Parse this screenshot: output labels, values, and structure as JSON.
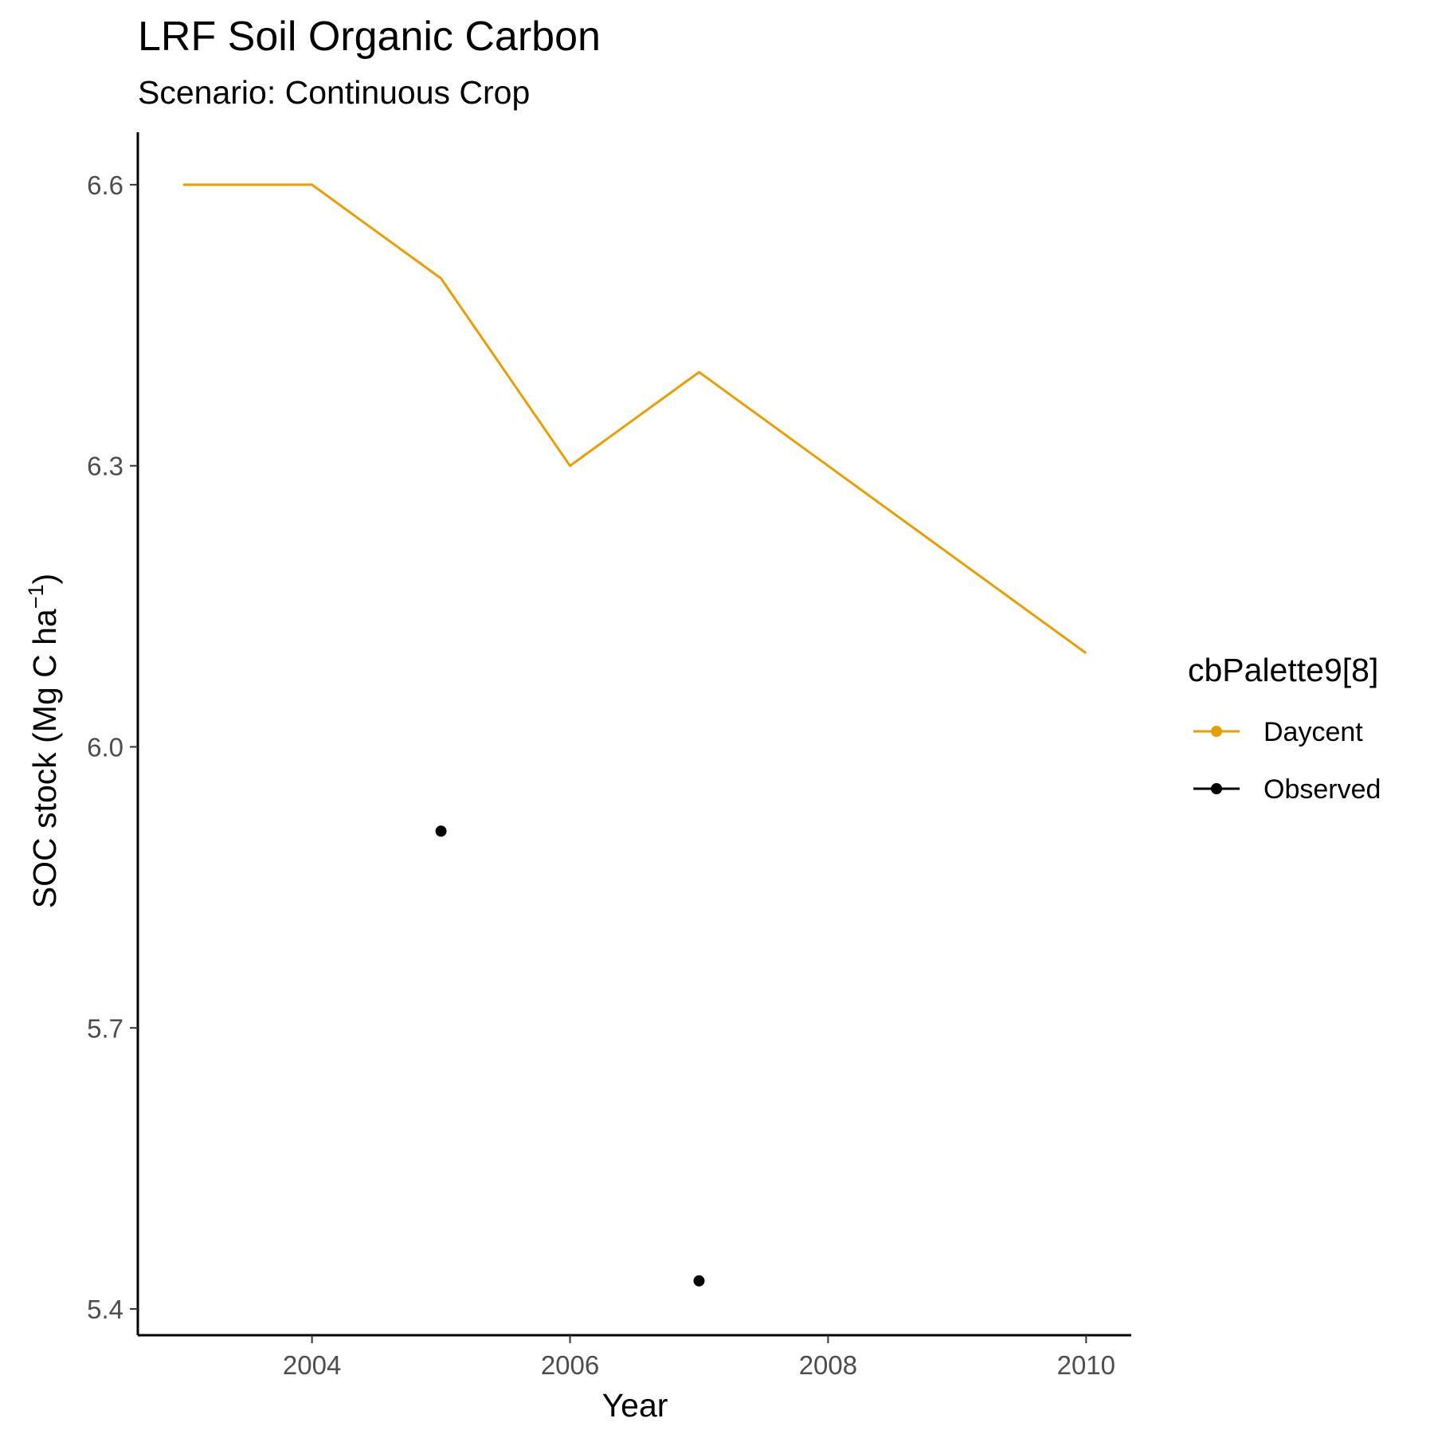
{
  "chart_data": {
    "type": "line",
    "title": "LRF Soil Organic Carbon",
    "subtitle": "Scenario: Continuous Crop",
    "xlabel": "Year",
    "ylabel_main": "SOC stock (Mg C ha",
    "ylabel_sup": "−1",
    "ylabel_close": ")",
    "xlim": [
      2002.65,
      2010.35
    ],
    "ylim": [
      5.372,
      6.656
    ],
    "x_ticks": [
      2004,
      2006,
      2008,
      2010
    ],
    "y_ticks": [
      5.4,
      5.7,
      6.0,
      6.3,
      6.6
    ],
    "x_tick_labels": [
      "2004",
      "2006",
      "2008",
      "2010"
    ],
    "y_tick_labels": [
      "5.4",
      "5.7",
      "6.0",
      "6.3",
      "6.6"
    ],
    "grid": false,
    "legend": {
      "title": "cbPalette9[8]",
      "position": "right",
      "entries": [
        "Daycent",
        "Observed"
      ]
    },
    "series": [
      {
        "name": "Daycent",
        "kind": "line",
        "color": "#E69F00",
        "x": [
          2003,
          2004,
          2005,
          2006,
          2007,
          2008,
          2009,
          2010
        ],
        "y": [
          6.6,
          6.6,
          6.5,
          6.3,
          6.4,
          6.3,
          6.2,
          6.1
        ]
      },
      {
        "name": "Observed",
        "kind": "points",
        "color": "#000000",
        "x": [
          2005,
          2007
        ],
        "y": [
          5.91,
          5.43
        ]
      }
    ]
  }
}
